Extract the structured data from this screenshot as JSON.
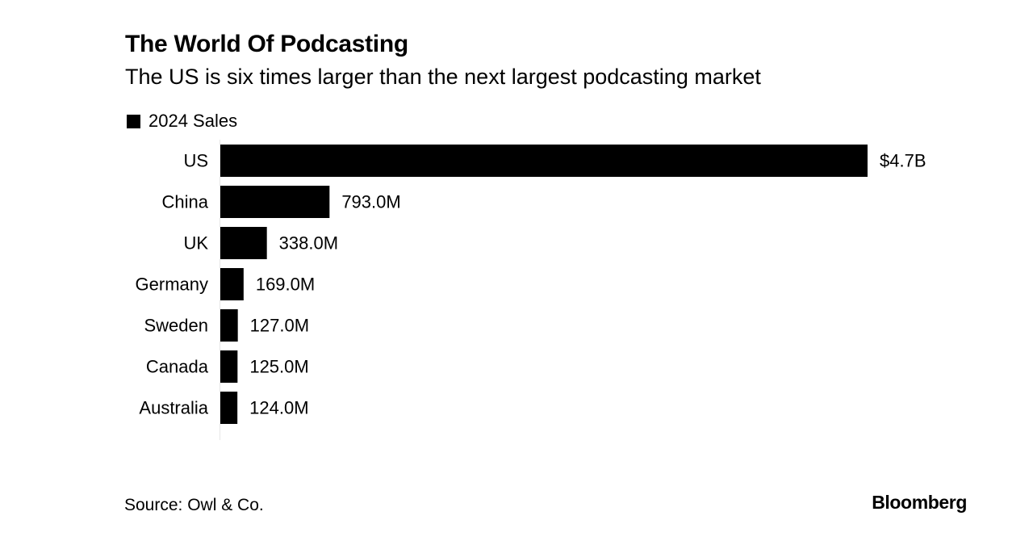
{
  "header": {
    "title": "The World Of Podcasting",
    "subtitle": "The US is six times larger than the next largest podcasting market"
  },
  "legend": {
    "label": "2024 Sales"
  },
  "footer": {
    "source": "Source: Owl & Co.",
    "brand": "Bloomberg"
  },
  "colors": {
    "bar": "#000000",
    "background": "#ffffff"
  },
  "chart_data": {
    "type": "bar",
    "orientation": "horizontal",
    "title": "The World Of Podcasting",
    "subtitle": "The US is six times larger than the next largest podcasting market",
    "categories": [
      "US",
      "China",
      "UK",
      "Germany",
      "Sweden",
      "Canada",
      "Australia"
    ],
    "series": [
      {
        "name": "2024 Sales",
        "values": [
          4700,
          793,
          338,
          169,
          127,
          125,
          124
        ],
        "value_unit": "millions USD",
        "data_labels": [
          "$4.7B",
          "793.0M",
          "338.0M",
          "169.0M",
          "127.0M",
          "125.0M",
          "124.0M"
        ]
      }
    ],
    "xlim": [
      0,
      4700
    ],
    "grid": false,
    "legend_position": "top-left"
  }
}
